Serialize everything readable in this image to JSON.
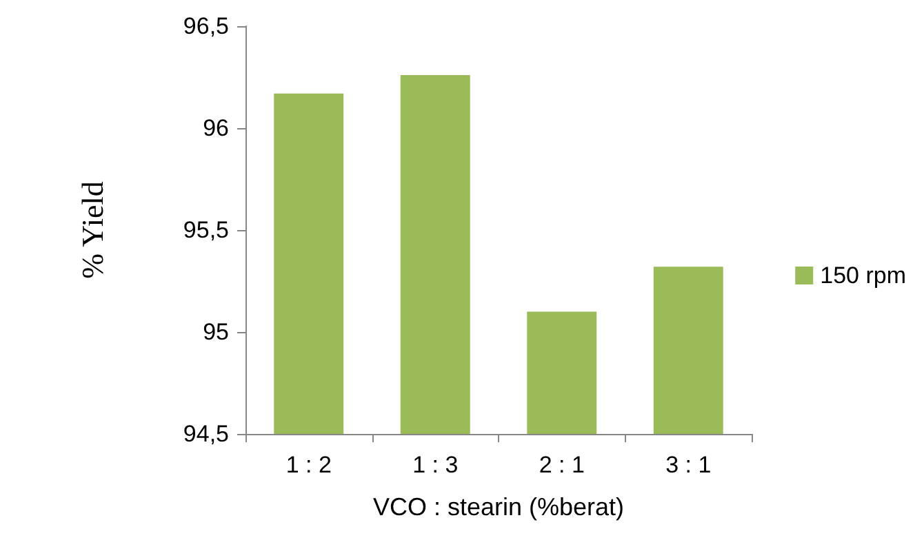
{
  "chart_data": {
    "type": "bar",
    "xlabel": "VCO : stearin (%berat)",
    "ylabel": "% Yield",
    "categories": [
      "1 : 2",
      "1 : 3",
      "2 : 1",
      "3 : 1"
    ],
    "series": [
      {
        "name": "150 rpm",
        "color": "#9bbb59",
        "values": [
          96.17,
          96.26,
          95.1,
          95.32
        ]
      }
    ],
    "ylim": [
      94.5,
      96.5
    ],
    "yticks": [
      {
        "value": 94.5,
        "label": "94,5"
      },
      {
        "value": 95,
        "label": "95"
      },
      {
        "value": 95.5,
        "label": "95,5"
      },
      {
        "value": 96,
        "label": "96"
      },
      {
        "value": 96.5,
        "label": "96,5"
      }
    ],
    "grid": false,
    "legend": "right"
  }
}
